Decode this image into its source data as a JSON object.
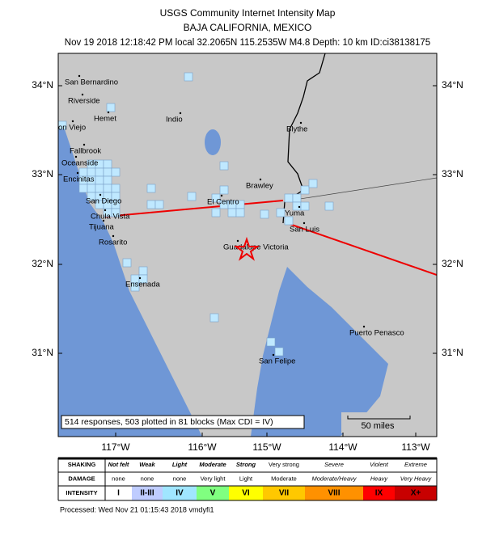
{
  "header": {
    "title": "USGS Community Internet Intensity Map",
    "region": "BAJA CALIFORNIA, MEXICO",
    "details": "Nov 19 2018 12:18:42 PM local 32.2065N 115.2535W M4.8 Depth: 10 km ID:ci38138175"
  },
  "map": {
    "cities": [
      "San Bernardino",
      "Riverside",
      "Hemet",
      "Indio",
      "on Viejo",
      "Blythe",
      "Fallbrook",
      "Oceanside",
      "Encinitas",
      "Brawley",
      "San Diego",
      "El Centro",
      "Yuma",
      "Chula Vista",
      "Tijuana",
      "San Luis",
      "Rosarito",
      "Guadalupe Victoria",
      "Ensenada",
      "Puerto Penasco",
      "San Felipe"
    ],
    "lat_labels": [
      "34°N",
      "33°N",
      "32°N",
      "31°N"
    ],
    "lon_labels": [
      "117°W",
      "116°W",
      "115°W",
      "114°W",
      "113°W"
    ],
    "summary": "514 responses, 503 plotted in 81 blocks (Max CDI = IV)",
    "scale_label": "50 miles"
  },
  "legend": {
    "row_labels": [
      "SHAKING",
      "DAMAGE",
      "INTENSITY"
    ],
    "shaking": [
      "Not felt",
      "Weak",
      "Light",
      "Moderate",
      "Strong",
      "Very strong",
      "Severe",
      "Violent",
      "Extreme"
    ],
    "damage": [
      "none",
      "none",
      "none",
      "Very light",
      "Light",
      "Moderate",
      "Moderate/Heavy",
      "Heavy",
      "Very Heavy"
    ],
    "intensity": [
      "I",
      "II-III",
      "IV",
      "V",
      "VI",
      "VII",
      "VIII",
      "IX",
      "X+"
    ]
  },
  "footer": "Processed: Wed Nov 21 01:15:43 2018 vmdyfi1"
}
